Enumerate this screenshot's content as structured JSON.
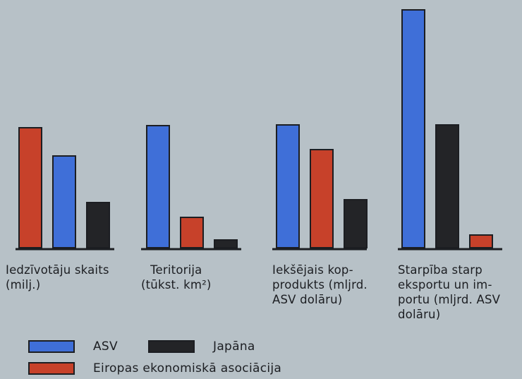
{
  "chart_data": {
    "type": "bar",
    "title": "",
    "groups": [
      {
        "label": "Iedzīvotāju skaits\n(milj.)"
      },
      {
        "label": "Teritorija\n(tūkst. km²)"
      },
      {
        "label": "Iekšējais kop-\nprodukts (mljrd.\nASV dolāru)"
      },
      {
        "label": "Starpība starp\neksportu un im-\nportu (mljrd. ASV\ndolāru)"
      }
    ],
    "series": [
      {
        "name": "ASV",
        "color": "#3f6fd8",
        "values": [
          130,
          173,
          174,
          337
        ]
      },
      {
        "name": "Eiropas ekonomiskā asociācija",
        "color": "#c7412a",
        "values": [
          170,
          43,
          139,
          18
        ]
      },
      {
        "name": "Japāna",
        "color": "#232427",
        "values": [
          64,
          11,
          68,
          174
        ]
      }
    ],
    "series_order_per_group": [
      [
        "Eiropas ekonomiskā asociācija",
        "ASV",
        "Japāna"
      ],
      [
        "ASV",
        "Eiropas ekonomiskā asociācija",
        "Japāna"
      ],
      [
        "ASV",
        "Eiropas ekonomiskā asociācija",
        "Japāna"
      ],
      [
        "ASV",
        "Japāna",
        "Eiropas ekonomiskā asociācija"
      ]
    ],
    "y_axis": "none",
    "grid": false,
    "legend_placement": "bottom-left"
  },
  "legend": {
    "asv": "ASV",
    "japan": "Japāna",
    "eec": "Eiropas ekonomiskā asociācija"
  }
}
